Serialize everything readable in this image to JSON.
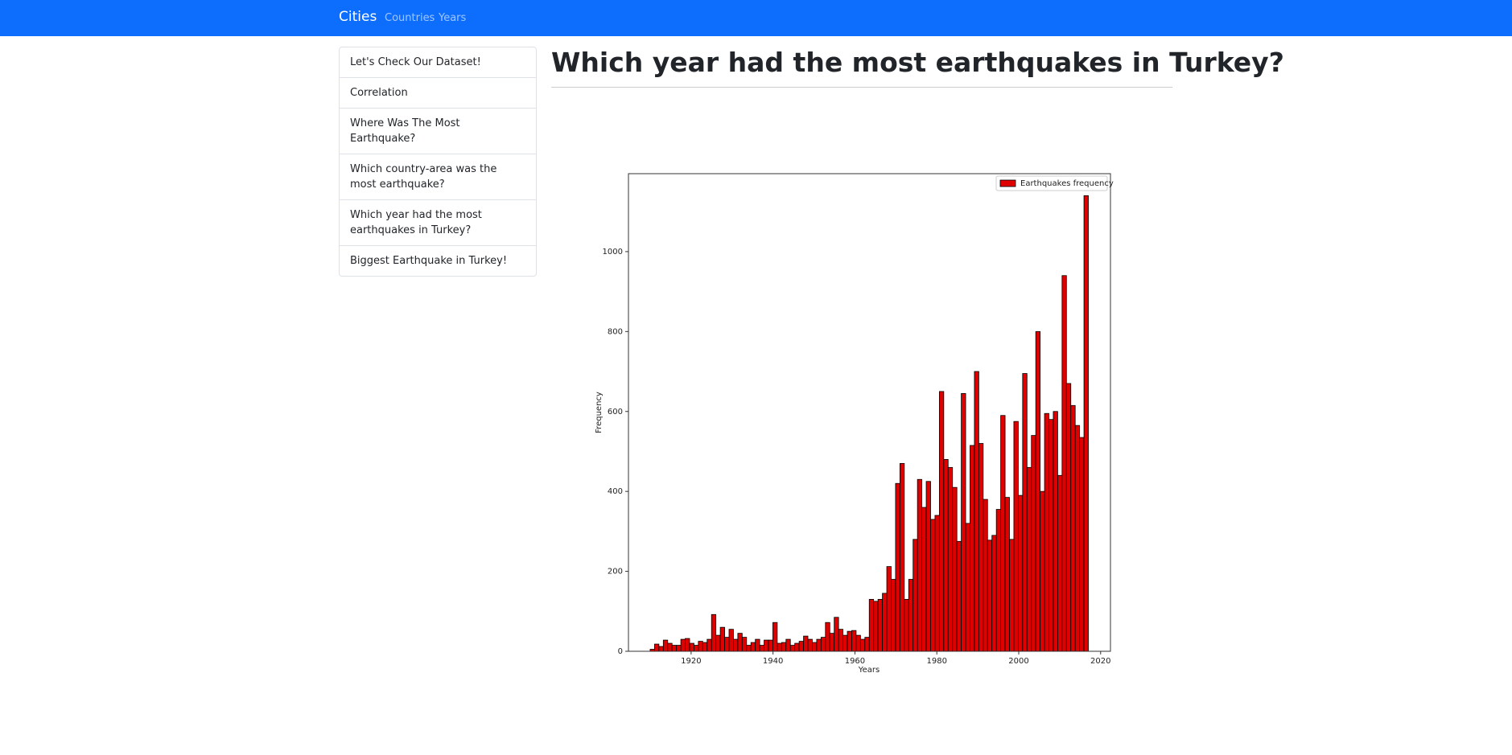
{
  "navbar": {
    "brand": "Cities",
    "links": [
      "Countries",
      "Years"
    ]
  },
  "sidebar": {
    "items": [
      "Let's Check Our Dataset!",
      "Correlation",
      "Where Was The Most Earthquake?",
      "Which country-area was the most earthquake?",
      "Which year had the most earthquakes in Turkey?",
      "Biggest Earthquake in Turkey!"
    ]
  },
  "heading": "Which year had the most earthquakes in Turkey?",
  "chart_data": {
    "type": "histogram",
    "xlabel": "Years",
    "ylabel": "Frequency",
    "bins": [
      1910.0,
      1911.07,
      1912.14,
      1913.21,
      1914.28,
      1915.35,
      1916.42,
      1917.49,
      1918.56,
      1919.63,
      1920.7,
      1921.77,
      1922.84,
      1923.91,
      1924.98,
      1926.05,
      1927.12,
      1928.19,
      1929.26,
      1930.33,
      1931.4,
      1932.47,
      1933.54,
      1934.61,
      1935.68,
      1936.75,
      1937.82,
      1938.89,
      1939.96,
      1941.03,
      1942.1,
      1943.17,
      1944.24,
      1945.31,
      1946.38,
      1947.45,
      1948.52,
      1949.59,
      1950.66,
      1951.73,
      1952.8,
      1953.87,
      1954.94,
      1956.01,
      1957.08,
      1958.15,
      1959.22,
      1960.29,
      1961.36,
      1962.43,
      1963.5,
      1964.57,
      1965.64,
      1966.71,
      1967.78,
      1968.85,
      1969.92,
      1970.99,
      1972.06,
      1973.13,
      1974.2,
      1975.27,
      1976.34,
      1977.41,
      1978.48,
      1979.55,
      1980.62,
      1981.69,
      1982.76,
      1983.83,
      1984.9,
      1985.97,
      1987.04,
      1988.11,
      1989.18,
      1990.25,
      1991.32,
      1992.39,
      1993.46,
      1994.53,
      1995.6,
      1996.67,
      1997.74,
      1998.81,
      1999.88,
      2000.95,
      2002.02,
      2003.09,
      2004.16,
      2005.23,
      2006.3,
      2007.37,
      2008.44,
      2009.51,
      2010.58,
      2011.65,
      2012.72,
      2013.79,
      2014.86,
      2015.93,
      2017.0
    ],
    "series": [
      {
        "name": "Earthquakes frequency",
        "color": "#e00000",
        "edgecolor": "#000000",
        "values": [
          5,
          18,
          12,
          28,
          20,
          15,
          15,
          30,
          32,
          20,
          15,
          25,
          22,
          30,
          92,
          40,
          60,
          35,
          55,
          30,
          45,
          35,
          15,
          22,
          30,
          15,
          28,
          28,
          72,
          20,
          22,
          30,
          15,
          20,
          25,
          38,
          30,
          22,
          30,
          35,
          72,
          45,
          85,
          55,
          40,
          50,
          52,
          40,
          30,
          35,
          130,
          125,
          130,
          145,
          212,
          180,
          420,
          470,
          130,
          180,
          280,
          430,
          360,
          425,
          330,
          340,
          650,
          480,
          460,
          410,
          275,
          645,
          320,
          515,
          700,
          520,
          380,
          278,
          290,
          355,
          590,
          385,
          280,
          575,
          390,
          695,
          460,
          540,
          800,
          400,
          595,
          580,
          600,
          440,
          940,
          670,
          615,
          565,
          535,
          1140
        ]
      }
    ],
    "xlim": [
      1904.7,
      2022.4
    ],
    "ylim": [
      0,
      1195
    ],
    "xticks": [
      1920,
      1940,
      1960,
      1980,
      2000,
      2020
    ],
    "yticks": [
      0,
      200,
      400,
      600,
      800,
      1000
    ],
    "legend": "upper right"
  }
}
